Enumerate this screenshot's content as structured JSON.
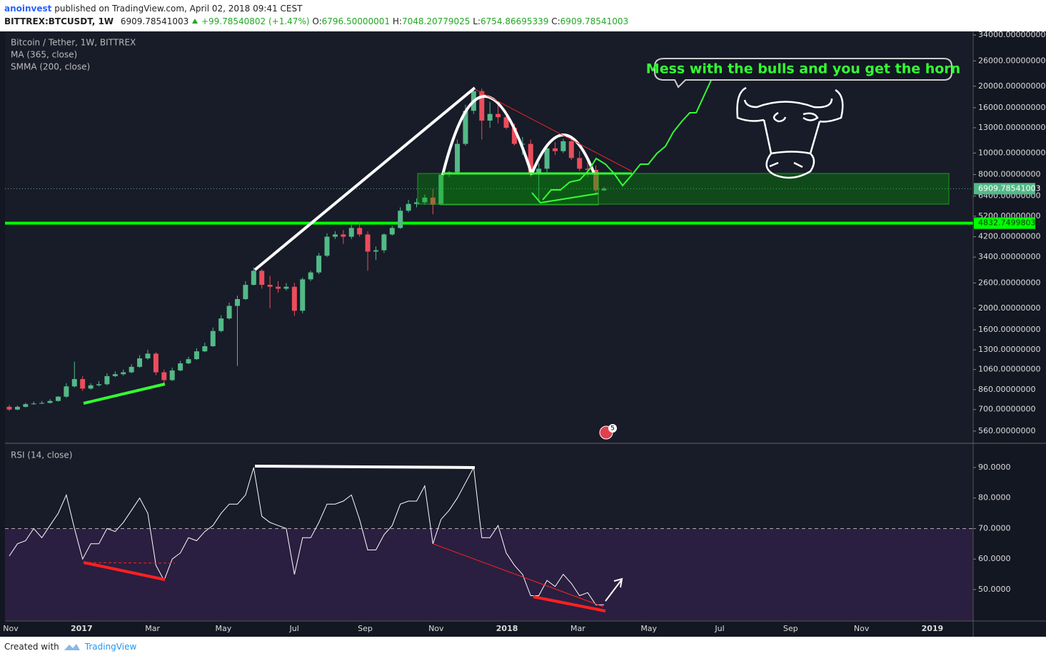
{
  "header": {
    "author": "anoinvest",
    "published": "published on TradingView.com, April 02, 2018 09:41 CEST"
  },
  "chart_data": [
    {
      "type": "candlestick",
      "symbol": "BITTREX:BTCUSDT, 1W",
      "change": "+99.78540802 (+1.47%)",
      "ohlc_labels": [
        "O:",
        "H:",
        "L:",
        "C:"
      ],
      "legend": [
        "Bitcoin / Tether, 1W, BITTREX",
        "MA (365, close)",
        "SMMA (200, close)"
      ],
      "open": [
        720,
        700,
        720,
        740,
        745,
        750,
        765,
        800,
        890,
        960,
        870,
        900,
        910,
        990,
        1010,
        1030,
        1090,
        1190,
        1250,
        1030,
        950,
        1050,
        1130,
        1180,
        1280,
        1350,
        1580,
        1800,
        2050,
        2200,
        2550,
        2950,
        2550,
        2500,
        2450,
        2500,
        1950,
        2700,
        2900,
        3450,
        4200,
        4300,
        4200,
        4600,
        4300,
        3600,
        3650,
        4300,
        4600,
        5500,
        5900,
        6000,
        6300,
        5850,
        8000,
        8200,
        11000,
        15500,
        19000,
        14000,
        15000,
        14500,
        13000,
        11000,
        11000,
        8000,
        8500,
        10500,
        10200,
        11300,
        9500,
        8500,
        8400,
        6796.50000001
      ],
      "high": [
        735,
        730,
        750,
        760,
        765,
        780,
        805,
        920,
        1150,
        990,
        920,
        940,
        1020,
        1040,
        1060,
        1120,
        1230,
        1300,
        1270,
        1060,
        1080,
        1160,
        1210,
        1320,
        1400,
        1640,
        1860,
        2120,
        2280,
        2650,
        3050,
        3000,
        2800,
        2650,
        2600,
        2600,
        2750,
        2950,
        3550,
        4350,
        4450,
        4500,
        4750,
        4900,
        4450,
        3800,
        4350,
        4700,
        5700,
        6150,
        6250,
        6500,
        6900,
        8100,
        8300,
        11500,
        16500,
        19800,
        19500,
        17000,
        16500,
        15000,
        13600,
        11800,
        11500,
        9000,
        10800,
        11200,
        11600,
        11800,
        10200,
        9200,
        8800,
        7048.20779025
      ],
      "low": [
        690,
        695,
        715,
        735,
        740,
        745,
        760,
        790,
        880,
        850,
        860,
        890,
        900,
        980,
        995,
        1020,
        1080,
        1170,
        1000,
        920,
        940,
        1040,
        1120,
        1170,
        1270,
        1340,
        1560,
        1780,
        1100,
        2180,
        2530,
        2450,
        2000,
        2350,
        2400,
        1850,
        1900,
        2650,
        2850,
        3400,
        4100,
        3900,
        4100,
        4200,
        2950,
        3300,
        3550,
        4250,
        4550,
        5400,
        5700,
        5850,
        5300,
        5800,
        7800,
        8100,
        10800,
        15000,
        11500,
        13000,
        13600,
        12800,
        10800,
        9800,
        7800,
        6000,
        8200,
        9800,
        10000,
        9300,
        8300,
        7800,
        6500,
        6754.86695339
      ],
      "close": [
        700,
        720,
        740,
        745,
        750,
        765,
        800,
        890,
        960,
        870,
        900,
        910,
        990,
        1010,
        1030,
        1090,
        1190,
        1250,
        1030,
        950,
        1050,
        1130,
        1180,
        1280,
        1350,
        1580,
        1800,
        2050,
        2200,
        2550,
        2950,
        2550,
        2500,
        2450,
        2500,
        1950,
        2700,
        2900,
        3450,
        4200,
        4300,
        4200,
        4600,
        4300,
        3600,
        3650,
        4300,
        4600,
        5500,
        5900,
        6000,
        6300,
        5850,
        8000,
        8200,
        11000,
        15500,
        19000,
        14000,
        15000,
        14500,
        13000,
        11000,
        11000,
        8000,
        8500,
        10500,
        10200,
        11300,
        9500,
        8500,
        8400,
        6800,
        6909.78541003
      ],
      "up_color": "#53b987",
      "down_color": "#eb4d5c",
      "log_scale": true,
      "ylim": [
        497,
        35300
      ],
      "yticks": [
        {
          "value": 34000,
          "label": "34000.00000000"
        },
        {
          "value": 26000,
          "label": "26000.00000000"
        },
        {
          "value": 20000,
          "label": "20000.00000000"
        },
        {
          "value": 16000,
          "label": "16000.00000000"
        },
        {
          "value": 13000,
          "label": "13000.00000000"
        },
        {
          "value": 10000,
          "label": "10000.00000000"
        },
        {
          "value": 8000,
          "label": "8000.00000000"
        },
        {
          "value": 6400,
          "label": "6400.00000000"
        },
        {
          "value": 5200,
          "label": "5200.00000000"
        },
        {
          "value": 4200,
          "label": "4200.00000000"
        },
        {
          "value": 3400,
          "label": "3400.00000000"
        },
        {
          "value": 2600,
          "label": "2600.00000000"
        },
        {
          "value": 2000,
          "label": "2000.00000000"
        },
        {
          "value": 1600,
          "label": "1600.00000000"
        },
        {
          "value": 1300,
          "label": "1300.00000000"
        },
        {
          "value": 1060,
          "label": "1060.00000000"
        },
        {
          "value": 860,
          "label": "860.00000000"
        },
        {
          "value": 700,
          "label": "700.00000000"
        },
        {
          "value": 560,
          "label": "560.00000000"
        }
      ],
      "support_level": 4832.74998033,
      "support_color": "#00ff00",
      "annotation": "Mess with the bulls and you get the horn",
      "event_count": "5",
      "xtick_labels": [
        "Nov",
        "2017",
        "Mar",
        "May",
        "Jul",
        "Sep",
        "Nov",
        "2018",
        "Mar",
        "May",
        "Jul",
        "Sep",
        "Nov",
        "2019"
      ]
    },
    {
      "type": "line",
      "title": "RSI (14, close)",
      "color": "#ffffff",
      "values": [
        61,
        65,
        66,
        70,
        67,
        71,
        75,
        81,
        70,
        60,
        65,
        65,
        70,
        69,
        72,
        76,
        80,
        75,
        58,
        53,
        60,
        62,
        67,
        66,
        69,
        71,
        75,
        78,
        78,
        81,
        90,
        74,
        72,
        71,
        70,
        55,
        67,
        67,
        72,
        78,
        78,
        79,
        81,
        73,
        63,
        63,
        68,
        71,
        78,
        79,
        79,
        84,
        65,
        73,
        76,
        80,
        85,
        90,
        67,
        67,
        71,
        62,
        58,
        55,
        48,
        48,
        53,
        51,
        55,
        52,
        48,
        49,
        45,
        45
      ],
      "ylim": [
        39.7,
        97.7
      ],
      "yticks": [
        {
          "value": 90,
          "label": "90.0000"
        },
        {
          "value": 80,
          "label": "80.0000"
        },
        {
          "value": 70,
          "label": "70.0000"
        },
        {
          "value": 60,
          "label": "60.0000"
        },
        {
          "value": 50,
          "label": "50.0000"
        }
      ],
      "overbought": 70
    }
  ],
  "footer": {
    "text": "Created with",
    "brand": "TradingView"
  }
}
